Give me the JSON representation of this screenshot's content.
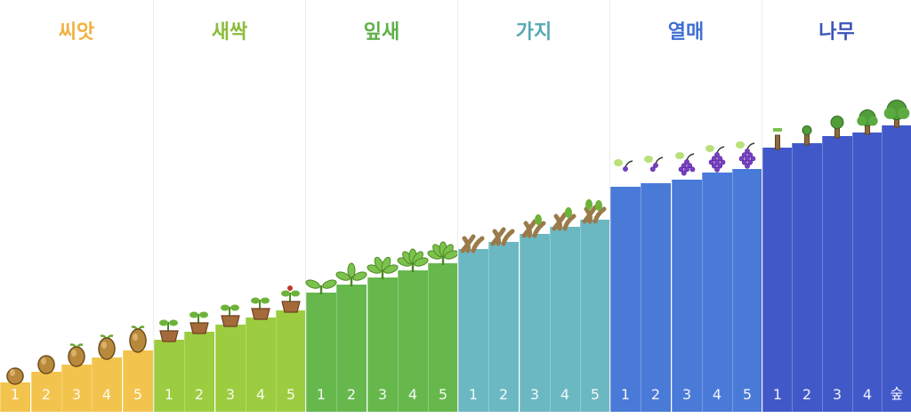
{
  "stages": [
    {
      "title": "씨앗",
      "title_color": "#f0b240",
      "bar_color": "#f3c44d",
      "levels": [
        0.08,
        0.11,
        0.13,
        0.15,
        0.17
      ],
      "sprite": "seed-icon",
      "steps": [
        {
          "label": "1"
        },
        {
          "label": "2"
        },
        {
          "label": "3"
        },
        {
          "label": "4"
        },
        {
          "label": "5"
        }
      ]
    },
    {
      "title": "새싹",
      "title_color": "#8bbd3a",
      "bar_color": "#9ccc3f",
      "levels": [
        0.2,
        0.22,
        0.24,
        0.26,
        0.28
      ],
      "sprite": "sprout-pot-icon",
      "steps": [
        {
          "label": "1"
        },
        {
          "label": "2"
        },
        {
          "label": "3"
        },
        {
          "label": "4"
        },
        {
          "label": "5"
        }
      ]
    },
    {
      "title": "잎새",
      "title_color": "#5fb04a",
      "bar_color": "#66b84d",
      "levels": [
        0.33,
        0.35,
        0.37,
        0.39,
        0.41
      ],
      "sprite": "leaf-icon",
      "steps": [
        {
          "label": "1"
        },
        {
          "label": "2"
        },
        {
          "label": "3"
        },
        {
          "label": "4"
        },
        {
          "label": "5"
        }
      ]
    },
    {
      "title": "가지",
      "title_color": "#56a9b2",
      "bar_color": "#6bb8c3",
      "levels": [
        0.45,
        0.47,
        0.49,
        0.51,
        0.53
      ],
      "sprite": "branch-icon",
      "steps": [
        {
          "label": "1"
        },
        {
          "label": "2"
        },
        {
          "label": "3"
        },
        {
          "label": "4"
        },
        {
          "label": "5"
        }
      ]
    },
    {
      "title": "열매",
      "title_color": "#3f6fd2",
      "bar_color": "#4a7ad8",
      "levels": [
        0.62,
        0.63,
        0.64,
        0.66,
        0.67
      ],
      "sprite": "grape-icon",
      "steps": [
        {
          "label": "1"
        },
        {
          "label": "2"
        },
        {
          "label": "3"
        },
        {
          "label": "4"
        },
        {
          "label": "5"
        }
      ]
    },
    {
      "title": "나무",
      "title_color": "#3c55b8",
      "bar_color": "#4159c8",
      "levels": [
        0.73,
        0.74,
        0.76,
        0.77,
        0.79
      ],
      "sprite": "tree-icon",
      "steps": [
        {
          "label": "1"
        },
        {
          "label": "2"
        },
        {
          "label": "3"
        },
        {
          "label": "4"
        },
        {
          "label": "숲"
        }
      ]
    }
  ]
}
